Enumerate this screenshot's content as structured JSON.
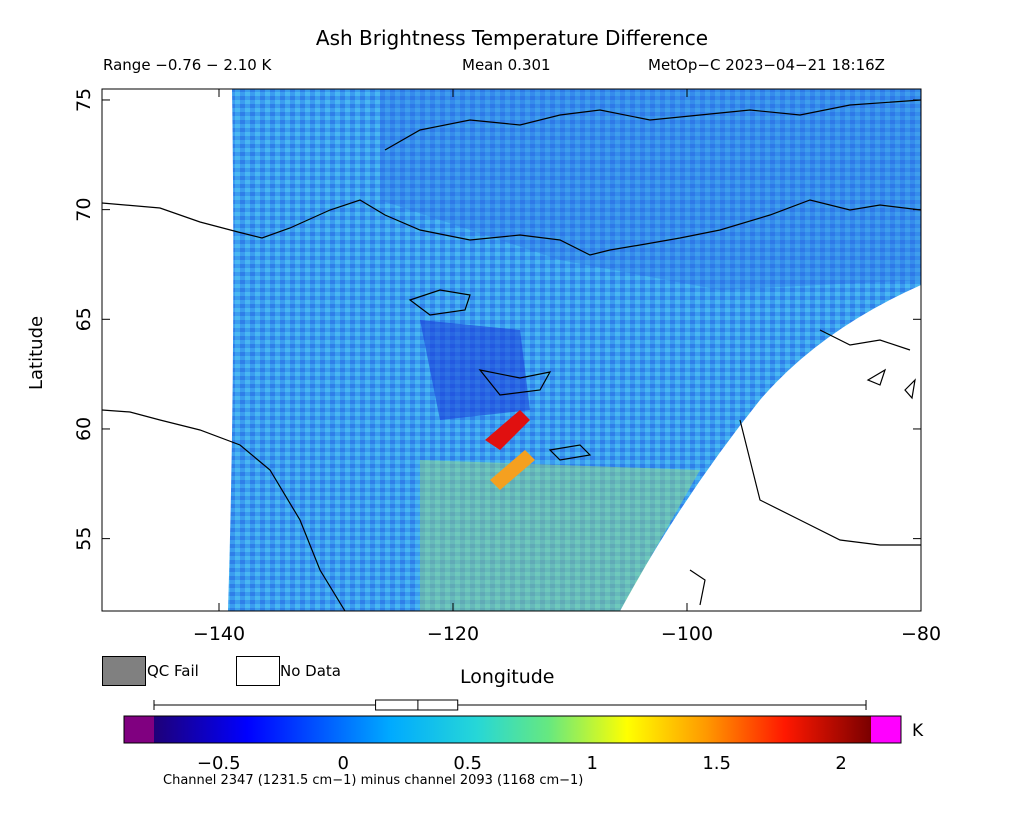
{
  "header": {
    "title": "Ash Brightness Temperature Difference",
    "range_text": "Range −0.76 − 2.10 K",
    "mean_text": "Mean 0.301",
    "satellite_text": "MetOp−C 2023−04−21 18:16Z"
  },
  "axes": {
    "x_label": "Longitude",
    "y_label": "Latitude",
    "x_range": [
      -150,
      -80
    ],
    "y_range": [
      51.7,
      75.5
    ],
    "x_ticks": [
      {
        "value": -140,
        "label": "−140"
      },
      {
        "value": -120,
        "label": "−120"
      },
      {
        "value": -100,
        "label": "−100"
      },
      {
        "value": -80,
        "label": "−80"
      }
    ],
    "y_ticks": [
      {
        "value": 55,
        "label": "55"
      },
      {
        "value": 60,
        "label": "60"
      },
      {
        "value": 65,
        "label": "65"
      },
      {
        "value": 70,
        "label": "70"
      },
      {
        "value": 75,
        "label": "75"
      }
    ]
  },
  "legend": {
    "qc_fail": "QC Fail",
    "no_data": "No Data",
    "qc_color": "#808080",
    "no_data_color": "#ffffff"
  },
  "colorbar": {
    "range": [
      -0.88,
      2.12
    ],
    "ticks": [
      {
        "value": -0.5,
        "label": "−0.5"
      },
      {
        "value": 0,
        "label": "0"
      },
      {
        "value": 0.5,
        "label": "0.5"
      },
      {
        "value": 1,
        "label": "1"
      },
      {
        "value": 1.5,
        "label": "1.5"
      },
      {
        "value": 2,
        "label": "2"
      }
    ],
    "under_color": "#800080",
    "over_color": "#ff00ff",
    "unit": "K",
    "box_whisker": {
      "min": -0.76,
      "q1": 0.13,
      "median": 0.3,
      "q3": 0.46,
      "max": 2.1
    }
  },
  "channel_note": "Channel 2347 (1231.5 cm−1) minus channel 2093 (1168 cm−1)"
}
